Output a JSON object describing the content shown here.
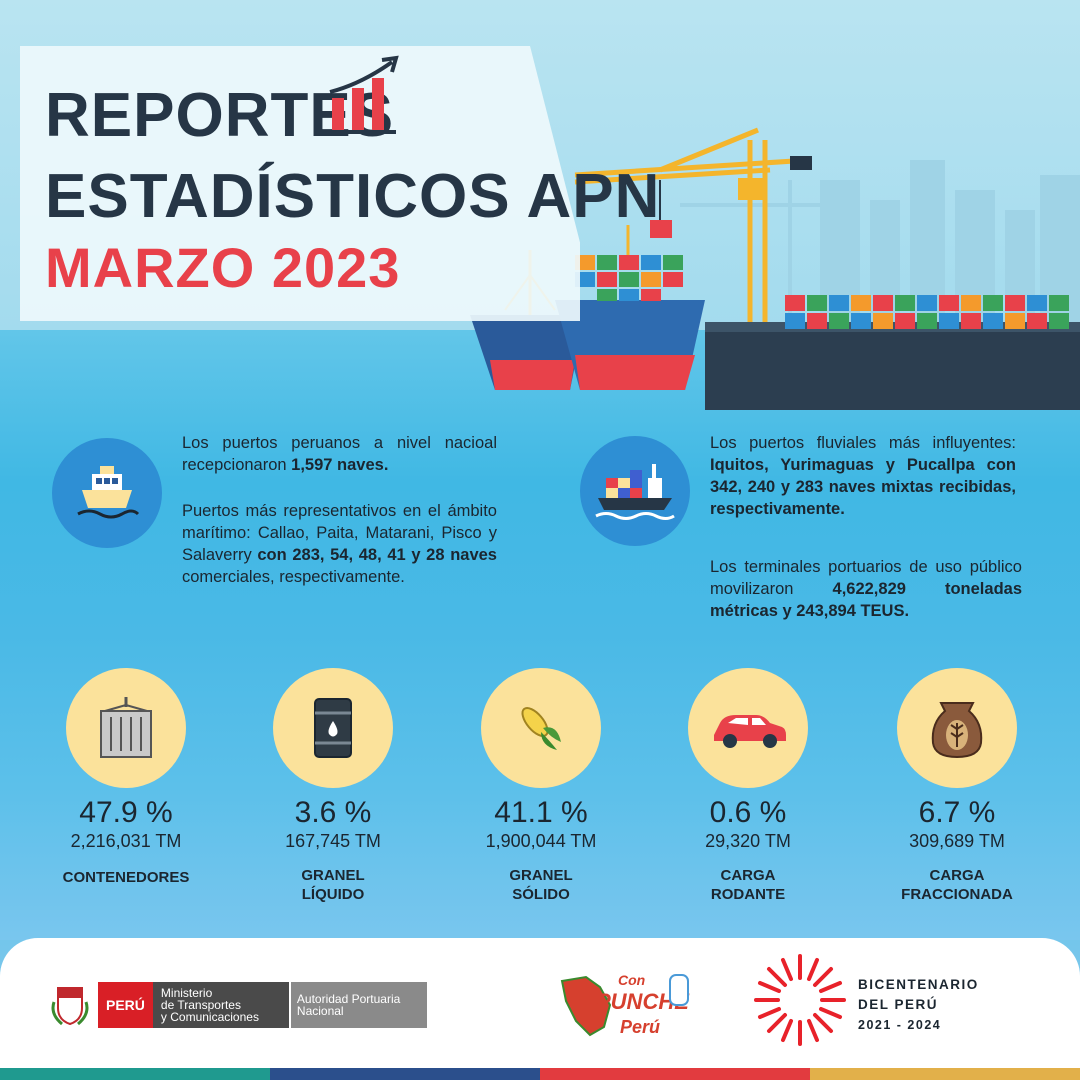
{
  "header": {
    "title_line1": "REPORTES",
    "title_line2": "ESTADÍSTICOS APN",
    "period": "MARZO 2023"
  },
  "info": {
    "left_p1_a": "Los puertos peruanos a nivel nacioal recepcionaron ",
    "left_p1_b": "1,597 naves.",
    "left_p2_a": "Puertos más representativos en el ámbito marítimo: Callao, Paita, Matarani, Pisco y Salaverry ",
    "left_p2_b": "con 283, 54, 48, 41 y 28 naves",
    "left_p2_c": " comerciales, respectivamente.",
    "right_p1_a": "Los puertos fluviales más influyentes: ",
    "right_p1_b": "Iquitos, Yurimaguas y Pucallpa con 342, 240 y 283 naves mixtas recibidas, respectivamente.",
    "right_p2_a": "Los terminales portuarios de uso público movilizaron ",
    "right_p2_b": "4,622,829 toneladas métricas y 243,894 TEUS."
  },
  "stats": [
    {
      "pct": "47.9 %",
      "tm": "2,216,031 TM",
      "label": "CONTENEDORES",
      "icon": "container-icon"
    },
    {
      "pct": "3.6 %",
      "tm": "167,745 TM",
      "label": "GRANEL\nLÍQUIDO",
      "icon": "oil-barrel-icon"
    },
    {
      "pct": "41.1 %",
      "tm": "1,900,044 TM",
      "label": "GRANEL\nSÓLIDO",
      "icon": "corn-icon"
    },
    {
      "pct": "0.6 %",
      "tm": "29,320 TM",
      "label": "CARGA\nRODANTE",
      "icon": "car-icon"
    },
    {
      "pct": "6.7 %",
      "tm": "309,689 TM",
      "label": "CARGA\nFRACCIONADA",
      "icon": "grain-sack-icon"
    }
  ],
  "footer": {
    "peru": "PERÚ",
    "ministry_l1": "Ministerio",
    "ministry_l2": "de Transportes",
    "ministry_l3": "y Comunicaciones",
    "apn_l1": "Autoridad Portuaria",
    "apn_l2": "Nacional",
    "campaign_l1": "Con",
    "campaign_l2": "PUNCHE",
    "campaign_l3": "Perú",
    "bicent_l1": "BICENTENARIO",
    "bicent_l2": "DEL PERÚ",
    "bicent_l3": "2021 - 2024"
  },
  "colors": {
    "title_dark": "#263646",
    "accent_red": "#e8414a",
    "icon_blue": "#2e8fd4",
    "stat_circle": "#fbe29b",
    "stripe_teal": "#1f9a8f",
    "stripe_blue": "#2b4f8c",
    "stripe_red": "#e23b3f",
    "stripe_gold": "#e2b04a"
  }
}
